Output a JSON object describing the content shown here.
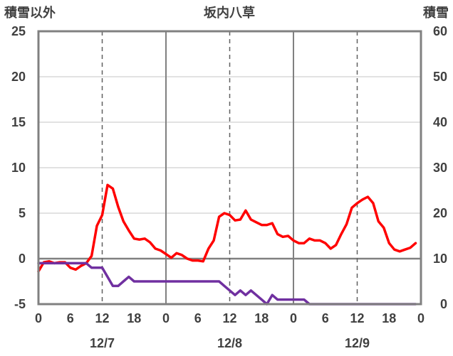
{
  "chart_data": {
    "type": "line",
    "title": "坂内八草",
    "ylabel_left": "積雪以外",
    "ylabel_right": "積雪",
    "ylim_left": [
      -5,
      25
    ],
    "ylim_right": [
      0,
      60
    ],
    "yticks_left": [
      "25",
      "20",
      "15",
      "10",
      "5",
      "0",
      "-5"
    ],
    "yticks_right": [
      "60",
      "50",
      "40",
      "30",
      "20",
      "10",
      "0"
    ],
    "xlim": [
      0,
      72
    ],
    "xtick_labels": [
      "0",
      "6",
      "12",
      "18",
      "0",
      "6",
      "12",
      "18",
      "0",
      "6",
      "12",
      "18",
      "0"
    ],
    "date_labels": [
      "12/7",
      "12/8",
      "12/9"
    ],
    "grid": "vertical dashed at 12h, solid at 0h",
    "series": [
      {
        "axis": "left",
        "color": "#ff0000",
        "x": [
          0,
          1,
          2,
          3,
          4,
          5,
          6,
          7,
          8,
          9,
          10,
          11,
          12,
          13,
          14,
          15,
          16,
          17,
          18,
          19,
          20,
          21,
          22,
          23,
          24,
          25,
          26,
          27,
          28,
          29,
          30,
          31,
          32,
          33,
          34,
          35,
          36,
          37,
          38,
          39,
          40,
          41,
          42,
          43,
          44,
          45,
          46,
          47,
          48,
          49,
          50,
          51,
          52,
          53,
          54,
          55,
          56,
          57,
          58,
          59,
          60,
          61,
          62,
          63,
          64,
          65,
          66,
          67,
          68,
          69,
          70,
          71
        ],
        "values": [
          -1.4,
          -0.4,
          -0.3,
          -0.5,
          -0.4,
          -0.4,
          -1.0,
          -1.2,
          -0.8,
          -0.5,
          0.3,
          3.6,
          4.8,
          8.1,
          7.7,
          5.7,
          4.1,
          3.1,
          2.2,
          2.1,
          2.2,
          1.8,
          1.1,
          0.9,
          0.5,
          0.1,
          0.6,
          0.4,
          0.0,
          -0.2,
          -0.2,
          -0.3,
          1.1,
          2.0,
          4.6,
          5.0,
          4.8,
          4.2,
          4.3,
          5.3,
          4.3,
          4.0,
          3.7,
          3.7,
          3.9,
          2.7,
          2.4,
          2.5,
          2.0,
          1.7,
          1.7,
          2.2,
          2.0,
          2.0,
          1.7,
          1.1,
          1.5,
          2.7,
          3.8,
          5.6,
          6.1,
          6.5,
          6.8,
          6.1,
          4.1,
          3.4,
          1.7,
          1.0,
          0.8,
          1.0,
          1.2,
          1.7
        ]
      },
      {
        "axis": "right",
        "color": "#7030a0",
        "x": [
          0,
          1,
          2,
          3,
          4,
          5,
          6,
          7,
          8,
          9,
          10,
          11,
          12,
          13,
          14,
          15,
          16,
          17,
          18,
          19,
          20,
          21,
          22,
          23,
          24,
          25,
          26,
          27,
          28,
          29,
          30,
          31,
          32,
          33,
          34,
          35,
          36,
          37,
          38,
          39,
          40,
          41,
          42,
          43,
          44,
          45,
          46,
          47,
          48,
          49,
          50,
          51,
          52,
          53,
          54,
          55,
          56,
          57,
          58,
          59,
          60,
          61,
          62,
          63,
          64,
          65,
          66,
          67,
          68,
          69,
          70,
          71
        ],
        "values": [
          9,
          9,
          9,
          9,
          9,
          9,
          9,
          9,
          9,
          9,
          8,
          8,
          8,
          6,
          4,
          4,
          5,
          6,
          5,
          5,
          5,
          5,
          5,
          5,
          5,
          5,
          5,
          5,
          5,
          5,
          5,
          5,
          5,
          5,
          5,
          4,
          3,
          2,
          3,
          2,
          3,
          2,
          1,
          0,
          2,
          1,
          1,
          1,
          1,
          1,
          1,
          0,
          0,
          0,
          0,
          0,
          0,
          0,
          0,
          0,
          0,
          0,
          0,
          0,
          0,
          0,
          0,
          0,
          0,
          0,
          0,
          0
        ]
      }
    ]
  }
}
